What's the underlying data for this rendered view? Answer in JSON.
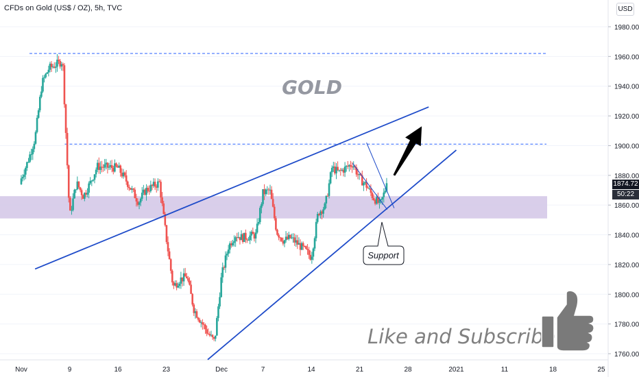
{
  "header": {
    "title": "CFDs on Gold (US$ / OZ), 5h, TVC",
    "currency": "USD"
  },
  "price_tag": {
    "price": "1874.72",
    "timer": "50:22"
  },
  "chart_data": {
    "type": "candlestick",
    "title": "GOLD",
    "watermark_text": "Like and Subscribe!",
    "callout": "Support",
    "ylim": [
      1755,
      1990
    ],
    "y_ticks": [
      1760,
      1780,
      1800,
      1820,
      1840,
      1860,
      1880,
      1900,
      1920,
      1940,
      1960,
      1980
    ],
    "y_tick_labels": [
      "1760.00",
      "1780.00",
      "1800.00",
      "1820.00",
      "1840.00",
      "1860.00",
      "1880.00",
      "1900.00",
      "1920.00",
      "1940.00",
      "1960.00",
      "1980.00"
    ],
    "x_ticks": [
      {
        "label": "Nov",
        "date": "2020-11-02"
      },
      {
        "label": "9",
        "date": "2020-11-09"
      },
      {
        "label": "16",
        "date": "2020-11-16"
      },
      {
        "label": "23",
        "date": "2020-11-23"
      },
      {
        "label": "Dec",
        "date": "2020-12-01"
      },
      {
        "label": "7",
        "date": "2020-12-07"
      },
      {
        "label": "14",
        "date": "2020-12-14"
      },
      {
        "label": "21",
        "date": "2020-12-21"
      },
      {
        "label": "28",
        "date": "2020-12-28"
      },
      {
        "label": "2021",
        "date": "2021-01-04"
      },
      {
        "label": "11",
        "date": "2021-01-11"
      },
      {
        "label": "18",
        "date": "2021-01-18"
      },
      {
        "label": "25",
        "date": "2021-01-25"
      }
    ],
    "close_path": [
      [
        "2020-11-02",
        1878
      ],
      [
        "2020-11-03",
        1890
      ],
      [
        "2020-11-04",
        1905
      ],
      [
        "2020-11-05",
        1942
      ],
      [
        "2020-11-06",
        1952
      ],
      [
        "2020-11-08",
        1957
      ],
      [
        "2020-11-09",
        1852
      ],
      [
        "2020-11-10",
        1875
      ],
      [
        "2020-11-11",
        1866
      ],
      [
        "2020-11-12",
        1875
      ],
      [
        "2020-11-13",
        1886
      ],
      [
        "2020-11-16",
        1885
      ],
      [
        "2020-11-17",
        1878
      ],
      [
        "2020-11-18",
        1870
      ],
      [
        "2020-11-19",
        1862
      ],
      [
        "2020-11-20",
        1870
      ],
      [
        "2020-11-22",
        1875
      ],
      [
        "2020-11-23",
        1838
      ],
      [
        "2020-11-24",
        1805
      ],
      [
        "2020-11-25",
        1810
      ],
      [
        "2020-11-26",
        1812
      ],
      [
        "2020-11-27",
        1790
      ],
      [
        "2020-11-29",
        1774
      ],
      [
        "2020-11-30",
        1768
      ],
      [
        "2020-12-01",
        1812
      ],
      [
        "2020-12-02",
        1832
      ],
      [
        "2020-12-03",
        1840
      ],
      [
        "2020-12-04",
        1838
      ],
      [
        "2020-12-06",
        1840
      ],
      [
        "2020-12-07",
        1868
      ],
      [
        "2020-12-08",
        1870
      ],
      [
        "2020-12-09",
        1842
      ],
      [
        "2020-12-10",
        1836
      ],
      [
        "2020-12-11",
        1838
      ],
      [
        "2020-12-13",
        1830
      ],
      [
        "2020-12-14",
        1825
      ],
      [
        "2020-12-15",
        1855
      ],
      [
        "2020-12-16",
        1859
      ],
      [
        "2020-12-17",
        1885
      ],
      [
        "2020-12-18",
        1882
      ],
      [
        "2020-12-20",
        1888
      ],
      [
        "2020-12-21",
        1878
      ],
      [
        "2020-12-22",
        1873
      ],
      [
        "2020-12-23",
        1865
      ],
      [
        "2020-12-24",
        1860
      ],
      [
        "2020-12-25",
        1874.72
      ]
    ],
    "horizontal_levels": [
      1962,
      1901
    ],
    "support_zone": [
      1851,
      1866
    ],
    "trendlines": [
      {
        "name": "channel-top",
        "from": [
          "2020-11-04",
          1817
        ],
        "to": [
          "2020-12-31",
          1926
        ]
      },
      {
        "name": "channel-bottom",
        "from": [
          "2020-11-29",
          1756
        ],
        "to": [
          "2021-01-04",
          1897
        ]
      }
    ],
    "wedge_lines": [
      {
        "from": [
          "2020-12-20",
          1888
        ],
        "to": [
          "2020-12-25",
          1857
        ]
      },
      {
        "from": [
          "2020-12-22",
          1902
        ],
        "to": [
          "2020-12-26",
          1858
        ]
      }
    ],
    "arrow": {
      "from": [
        "2020-12-26",
        1880
      ],
      "to": [
        "2020-12-30",
        1913
      ]
    },
    "last_price": 1874.72,
    "colors": {
      "up": "#26a69a",
      "down": "#ef5350",
      "trendline": "#1e4bc9",
      "zone": "#d2c6e6",
      "level": "#2962ff",
      "arrow": "#000000",
      "annotation": "#9598a1"
    }
  }
}
